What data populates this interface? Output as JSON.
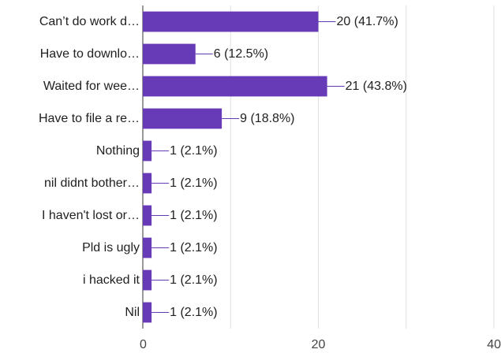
{
  "chart_data": {
    "type": "bar",
    "orientation": "horizontal",
    "categories": [
      "Can’t do work d…",
      "Have to downlo…",
      "Waited for wee…",
      "Have to file a re…",
      "Nothing",
      "nil didnt bother…",
      "I haven't lost or…",
      "Pld is ugly",
      "i hacked it",
      "Nil"
    ],
    "values": [
      20,
      6,
      21,
      9,
      1,
      1,
      1,
      1,
      1,
      1
    ],
    "value_labels": [
      "20 (41.7%)",
      "6 (12.5%)",
      "21 (43.8%)",
      "9 (18.8%)",
      "1 (2.1%)",
      "1 (2.1%)",
      "1 (2.1%)",
      "1 (2.1%)",
      "1 (2.1%)",
      "1 (2.1%)"
    ],
    "xlim": [
      0,
      40
    ],
    "xticks": [
      0,
      20,
      40
    ],
    "xtick_labels": [
      "0",
      "20",
      "40"
    ],
    "grid": true,
    "legend": "none",
    "bar_color": "#673ab7"
  }
}
